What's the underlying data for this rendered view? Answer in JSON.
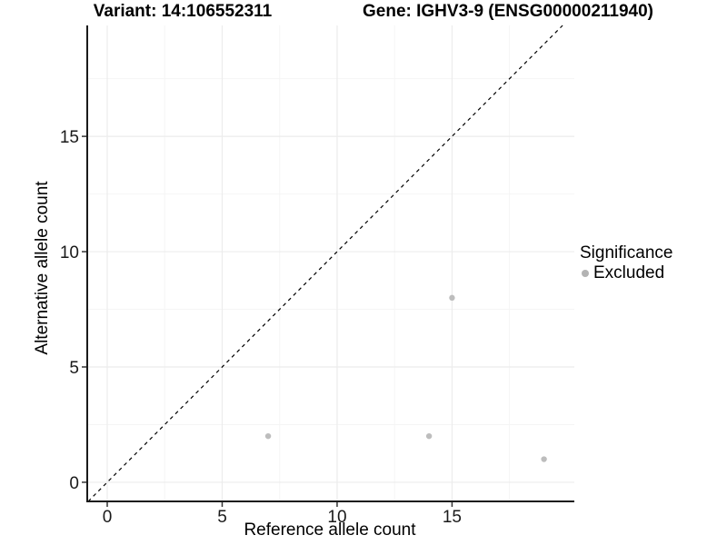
{
  "chart_data": {
    "type": "scatter",
    "title_left": "Variant: 14:106552311",
    "title_right": "Gene: IGHV3-9 (ENSG00000211940)",
    "xlabel": "Reference allele count",
    "ylabel": "Alternative allele count",
    "xlim": [
      -0.87,
      20.32
    ],
    "ylim": [
      -0.83,
      19.81
    ],
    "x_ticks": [
      0,
      5,
      10,
      15
    ],
    "x_tick_labels": [
      "0",
      "5",
      "10",
      "15"
    ],
    "y_ticks": [
      0,
      5,
      10,
      15
    ],
    "y_tick_labels": [
      "0",
      "5",
      "10",
      "15"
    ],
    "x_minor": [
      2.5,
      7.5,
      12.5,
      17.5
    ],
    "y_minor": [
      2.5,
      7.5,
      12.5,
      17.5
    ],
    "grid": true,
    "reference_line": {
      "slope": 1,
      "intercept": 0,
      "style": "dashed",
      "color": "#000000"
    },
    "series": [
      {
        "name": "Excluded",
        "color": "#bdbdbd",
        "points": [
          [
            7,
            2
          ],
          [
            14,
            2
          ],
          [
            15,
            8
          ],
          [
            19,
            1
          ]
        ]
      }
    ],
    "legend": {
      "title": "Significance",
      "position": "right",
      "items": [
        {
          "label": "Excluded",
          "color": "#b3b3b3",
          "marker": "dot-icon"
        }
      ]
    },
    "colors": {
      "background": "#ffffff",
      "axis_line": "#1a1a1a",
      "tick_mark": "#333333",
      "tick_label": "#1a1a1a",
      "grid_major": "#ececec",
      "grid_minor": "#f5f5f5",
      "point": "#bdbdbd"
    }
  }
}
